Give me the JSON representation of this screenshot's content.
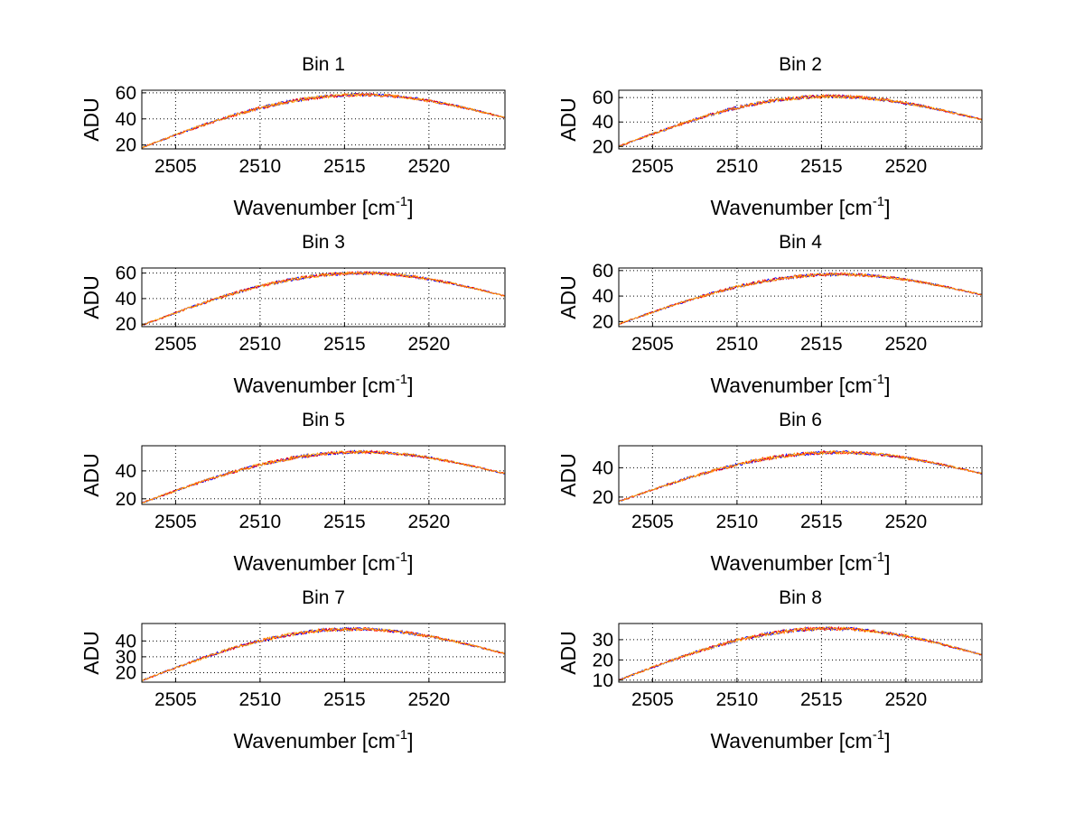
{
  "figure": {
    "background": "#ffffff"
  },
  "series_colors": [
    "#0000ff",
    "#ff0000",
    "#ffa500"
  ],
  "chart_data": [
    {
      "type": "line",
      "title": "Bin 1",
      "xlabel": "Wavenumber [cm",
      "xlabel_sup": "-1",
      "xlabel_close": "]",
      "ylabel": "ADU",
      "xlim": [
        2503,
        2524.5
      ],
      "ylim": [
        17,
        62
      ],
      "xticks": [
        2505,
        2510,
        2515,
        2520
      ],
      "yticks": [
        20,
        40,
        60
      ],
      "grid": true,
      "curve": {
        "start": 18,
        "peak": 58.5,
        "peak_x": 2516.0,
        "end": 41,
        "noise": 1.3,
        "seed": 11
      },
      "series_count": 3
    },
    {
      "type": "line",
      "title": "Bin 2",
      "xlabel": "Wavenumber [cm",
      "xlabel_sup": "-1",
      "xlabel_close": "]",
      "ylabel": "ADU",
      "xlim": [
        2503,
        2524.5
      ],
      "ylim": [
        18,
        66
      ],
      "xticks": [
        2505,
        2510,
        2515,
        2520
      ],
      "yticks": [
        20,
        40,
        60
      ],
      "grid": true,
      "curve": {
        "start": 20,
        "peak": 61,
        "peak_x": 2515.5,
        "end": 42,
        "noise": 1.5,
        "seed": 23
      },
      "series_count": 3
    },
    {
      "type": "line",
      "title": "Bin 3",
      "xlabel": "Wavenumber [cm",
      "xlabel_sup": "-1",
      "xlabel_close": "]",
      "ylabel": "ADU",
      "xlim": [
        2503,
        2524.5
      ],
      "ylim": [
        18,
        64
      ],
      "xticks": [
        2505,
        2510,
        2515,
        2520
      ],
      "yticks": [
        20,
        40,
        60
      ],
      "grid": true,
      "curve": {
        "start": 19,
        "peak": 60,
        "peak_x": 2516.0,
        "end": 42,
        "noise": 1.3,
        "seed": 37
      },
      "series_count": 3
    },
    {
      "type": "line",
      "title": "Bin 4",
      "xlabel": "Wavenumber [cm",
      "xlabel_sup": "-1",
      "xlabel_close": "]",
      "ylabel": "ADU",
      "xlim": [
        2503,
        2524.5
      ],
      "ylim": [
        16,
        62
      ],
      "xticks": [
        2505,
        2510,
        2515,
        2520
      ],
      "yticks": [
        20,
        40,
        60
      ],
      "grid": true,
      "curve": {
        "start": 18,
        "peak": 57,
        "peak_x": 2516.0,
        "end": 41,
        "noise": 1.3,
        "seed": 41
      },
      "series_count": 3
    },
    {
      "type": "line",
      "title": "Bin 5",
      "xlabel": "Wavenumber [cm",
      "xlabel_sup": "-1",
      "xlabel_close": "]",
      "ylabel": "ADU",
      "xlim": [
        2503,
        2524.5
      ],
      "ylim": [
        16,
        58
      ],
      "xticks": [
        2505,
        2510,
        2515,
        2520
      ],
      "yticks": [
        20,
        40
      ],
      "grid": true,
      "curve": {
        "start": 17,
        "peak": 53.5,
        "peak_x": 2516.0,
        "end": 38,
        "noise": 1.2,
        "seed": 53
      },
      "series_count": 3
    },
    {
      "type": "line",
      "title": "Bin 6",
      "xlabel": "Wavenumber [cm",
      "xlabel_sup": "-1",
      "xlabel_close": "]",
      "ylabel": "ADU",
      "xlim": [
        2503,
        2524.5
      ],
      "ylim": [
        15,
        55
      ],
      "xticks": [
        2505,
        2510,
        2515,
        2520
      ],
      "yticks": [
        20,
        40
      ],
      "grid": true,
      "curve": {
        "start": 17,
        "peak": 50.5,
        "peak_x": 2516.0,
        "end": 36,
        "noise": 1.2,
        "seed": 67
      },
      "series_count": 3
    },
    {
      "type": "line",
      "title": "Bin 7",
      "xlabel": "Wavenumber [cm",
      "xlabel_sup": "-1",
      "xlabel_close": "]",
      "ylabel": "ADU",
      "xlim": [
        2503,
        2524.5
      ],
      "ylim": [
        14,
        51
      ],
      "xticks": [
        2505,
        2510,
        2515,
        2520
      ],
      "yticks": [
        20,
        30,
        40
      ],
      "grid": true,
      "curve": {
        "start": 15,
        "peak": 47.5,
        "peak_x": 2515.5,
        "end": 32,
        "noise": 1.1,
        "seed": 79
      },
      "series_count": 3
    },
    {
      "type": "line",
      "title": "Bin 8",
      "xlabel": "Wavenumber [cm",
      "xlabel_sup": "-1",
      "xlabel_close": "]",
      "ylabel": "ADU",
      "xlim": [
        2503,
        2524.5
      ],
      "ylim": [
        9,
        38
      ],
      "xticks": [
        2505,
        2510,
        2515,
        2520
      ],
      "yticks": [
        10,
        20,
        30
      ],
      "grid": true,
      "curve": {
        "start": 10,
        "peak": 35.5,
        "peak_x": 2515.5,
        "end": 22.5,
        "noise": 0.9,
        "seed": 97
      },
      "series_count": 3
    }
  ]
}
